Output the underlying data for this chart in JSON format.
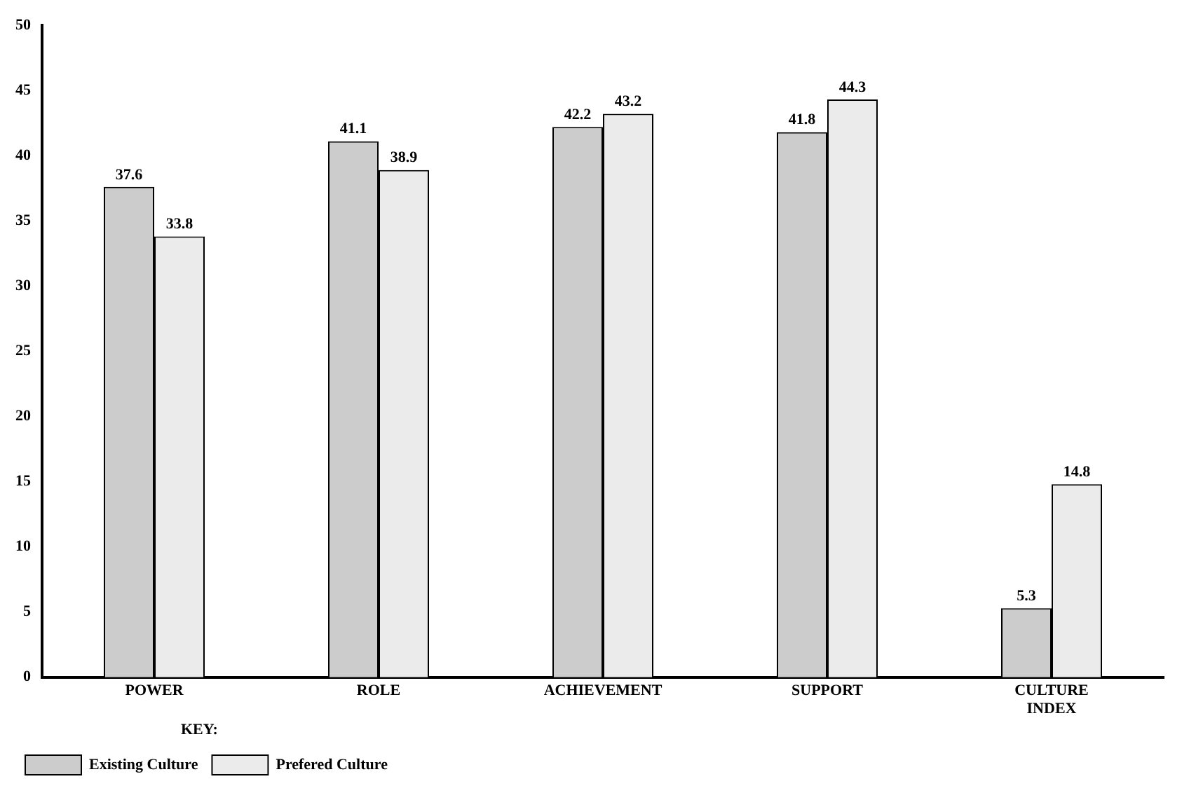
{
  "chart_data": {
    "type": "bar",
    "categories": [
      "POWER",
      "ROLE",
      "ACHIEVEMENT",
      "SUPPORT",
      "CULTURE INDEX"
    ],
    "series": [
      {
        "name": "Existing Culture",
        "color": "#cccccc",
        "values": [
          37.6,
          41.1,
          42.2,
          41.8,
          5.3
        ]
      },
      {
        "name": "Prefered Culture",
        "color": "#ebebeb",
        "values": [
          33.8,
          38.9,
          43.2,
          44.3,
          14.8
        ]
      }
    ],
    "ylim": [
      0,
      50
    ],
    "yticks": [
      0,
      5,
      10,
      15,
      20,
      25,
      30,
      35,
      40,
      45,
      50
    ],
    "grid": false,
    "data_labels": true,
    "legend": "bottom left",
    "legend_title": "KEY:"
  }
}
